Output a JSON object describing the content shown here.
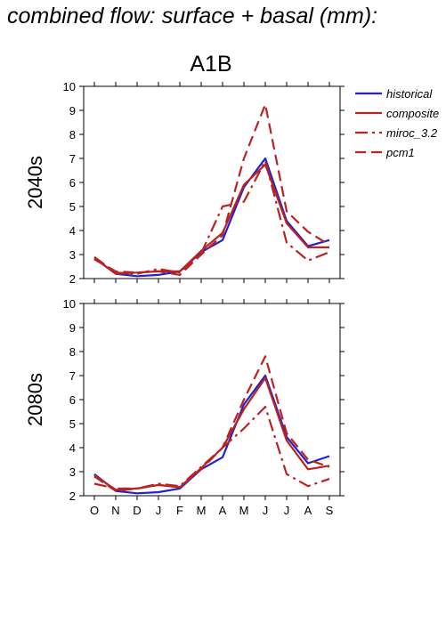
{
  "figure": {
    "title": "combined flow: surface + basal (mm):",
    "scenario": "A1B"
  },
  "colors": {
    "historical": "#2222cc",
    "projection": "#bb2222"
  },
  "chart_data": [
    {
      "type": "line",
      "panel_label": "2040s",
      "categories": [
        "O",
        "N",
        "D",
        "J",
        "F",
        "M",
        "A",
        "M",
        "J",
        "J",
        "A",
        "S"
      ],
      "ylim": [
        2,
        10
      ],
      "yticks": [
        2,
        3,
        4,
        5,
        6,
        7,
        8,
        9,
        10
      ],
      "series": [
        {
          "name": "historical",
          "values": [
            2.85,
            2.2,
            2.1,
            2.15,
            2.3,
            3.1,
            3.6,
            5.8,
            7.0,
            4.4,
            3.35,
            3.6
          ]
        },
        {
          "name": "composite",
          "values": [
            2.85,
            2.2,
            2.25,
            2.3,
            2.3,
            3.15,
            3.9,
            5.9,
            6.75,
            4.3,
            3.3,
            3.3
          ]
        },
        {
          "name": "miroc_3.2",
          "values": [
            2.9,
            2.25,
            2.2,
            2.4,
            2.25,
            3.05,
            5.0,
            5.2,
            6.9,
            3.5,
            2.75,
            3.1
          ]
        },
        {
          "name": "pcm1",
          "values": [
            2.8,
            2.3,
            2.25,
            2.3,
            2.15,
            3.0,
            3.8,
            7.0,
            9.25,
            4.8,
            3.95,
            3.4
          ]
        }
      ]
    },
    {
      "type": "line",
      "panel_label": "2080s",
      "categories": [
        "O",
        "N",
        "D",
        "J",
        "F",
        "M",
        "A",
        "M",
        "J",
        "J",
        "A",
        "S"
      ],
      "ylim": [
        2,
        10
      ],
      "yticks": [
        2,
        3,
        4,
        5,
        6,
        7,
        8,
        9,
        10
      ],
      "series": [
        {
          "name": "historical",
          "values": [
            2.9,
            2.2,
            2.1,
            2.15,
            2.3,
            3.1,
            3.6,
            5.8,
            7.0,
            4.45,
            3.35,
            3.65
          ]
        },
        {
          "name": "composite",
          "values": [
            2.85,
            2.25,
            2.3,
            2.45,
            2.35,
            3.15,
            4.0,
            5.6,
            6.9,
            4.3,
            3.1,
            3.25
          ]
        },
        {
          "name": "miroc_3.2",
          "values": [
            2.5,
            2.3,
            2.3,
            2.5,
            2.4,
            3.2,
            4.0,
            4.8,
            5.7,
            2.9,
            2.4,
            2.7
          ]
        },
        {
          "name": "pcm1",
          "values": [
            2.8,
            2.2,
            2.3,
            2.45,
            2.35,
            3.1,
            4.0,
            6.0,
            7.8,
            4.6,
            3.5,
            3.2
          ]
        }
      ]
    }
  ]
}
